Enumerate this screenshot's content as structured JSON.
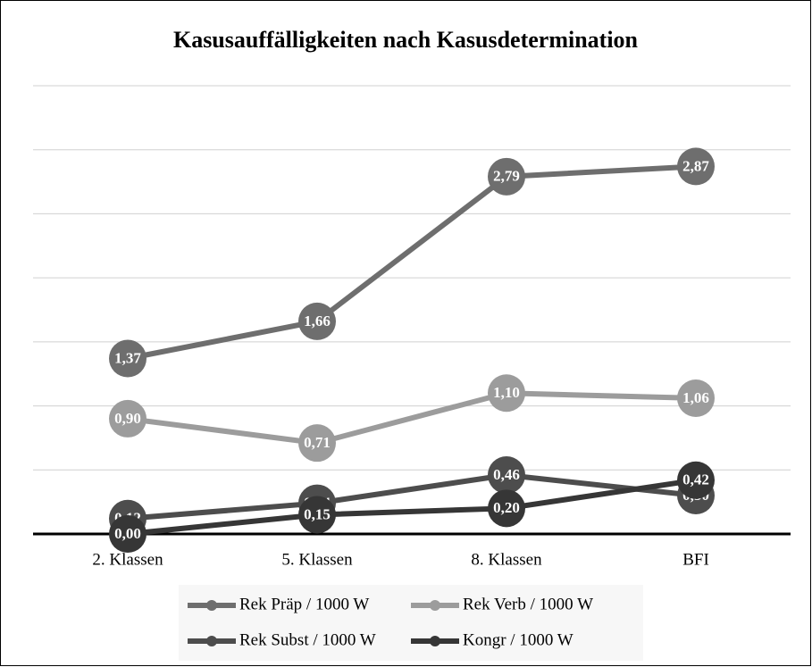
{
  "chart_data": {
    "type": "line",
    "title": "Kasusauffälligkeiten nach Kasusdetermination",
    "categories": [
      "2. Klassen",
      "5. Klassen",
      "8. Klassen",
      "BFI"
    ],
    "ylim": [
      0,
      3.5
    ],
    "yticks": [
      0,
      0.5,
      1,
      1.5,
      2,
      2.5,
      3,
      3.5
    ],
    "grid": true,
    "legend": "bottom",
    "series": [
      {
        "name": "Rek Präp / 1000 W",
        "color": "#6e6e6e",
        "values": [
          1.37,
          1.66,
          2.79,
          2.87
        ],
        "value_labels": [
          "1,37",
          "1,66",
          "2,79",
          "2,87"
        ]
      },
      {
        "name": "Rek Verb / 1000 W",
        "color": "#9c9c9c",
        "values": [
          0.9,
          0.71,
          1.1,
          1.06
        ],
        "value_labels": [
          "0,90",
          "0,71",
          "1,10",
          "1,06"
        ]
      },
      {
        "name": "Rek Subst / 1000 W",
        "color": "#4d4d4d",
        "values": [
          0.12,
          0.24,
          0.46,
          0.3
        ],
        "value_labels": [
          "0,12",
          "0,24",
          "0,46",
          "0,30"
        ]
      },
      {
        "name": "Kongr / 1000 W",
        "color": "#363636",
        "values": [
          0.0,
          0.15,
          0.2,
          0.42
        ],
        "value_labels": [
          "0,00",
          "0,15",
          "0,20",
          "0,42"
        ]
      }
    ]
  }
}
